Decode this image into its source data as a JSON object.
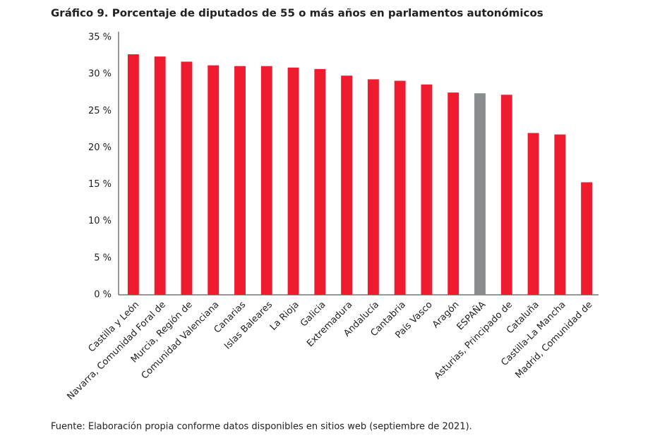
{
  "chart_data": {
    "type": "bar",
    "title": "Gráfico 9. Porcentaje de diputados de 55 o más años en parlamentos autonómicos",
    "source": "Fuente: Elaboración propia conforme datos disponibles en sitios web (septiembre de 2021).",
    "categories": [
      "Castilla y León",
      "Navarra, Comunidad Foral de",
      "Murcia, Región de",
      "Comunidad Valenciana",
      "Canarias",
      "Islas Baleares",
      "La Rioja",
      "Galicia",
      "Extremadura",
      "Andalucía",
      "Cantabria",
      "País Vasco",
      "Aragón",
      "ESPAÑA",
      "Asturias, Principado de",
      "Cataluña",
      "Castilla-La Mancha",
      "Madrid, Comunidad de"
    ],
    "values": [
      32.7,
      32.4,
      31.7,
      31.2,
      31.1,
      31.1,
      30.9,
      30.7,
      29.8,
      29.3,
      29.1,
      28.6,
      27.5,
      27.4,
      27.2,
      22.0,
      21.8,
      15.3
    ],
    "colors": [
      "#ee1c2e",
      "#ee1c2e",
      "#ee1c2e",
      "#ee1c2e",
      "#ee1c2e",
      "#ee1c2e",
      "#ee1c2e",
      "#ee1c2e",
      "#ee1c2e",
      "#ee1c2e",
      "#ee1c2e",
      "#ee1c2e",
      "#ee1c2e",
      "#888c8c",
      "#ee1c2e",
      "#ee1c2e",
      "#ee1c2e",
      "#ee1c2e"
    ],
    "ylim": [
      0,
      35
    ],
    "yticks": [
      {
        "value": 0,
        "label": "0 %"
      },
      {
        "value": 5,
        "label": "5 %"
      },
      {
        "value": 10,
        "label": "10 %"
      },
      {
        "value": 15,
        "label": "15 %"
      },
      {
        "value": 20,
        "label": "20 %"
      },
      {
        "value": 25,
        "label": "25 %"
      },
      {
        "value": 30,
        "label": "30 %"
      },
      {
        "value": 35,
        "label": "35 %"
      }
    ],
    "grid": false
  }
}
